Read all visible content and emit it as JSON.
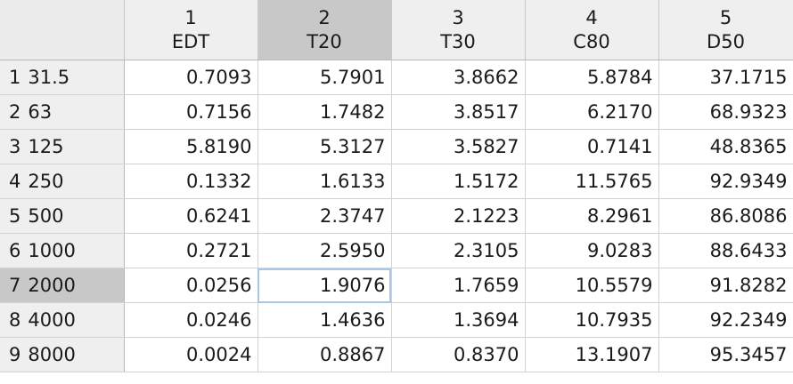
{
  "columns": [
    {
      "index": "1",
      "name": "EDT"
    },
    {
      "index": "2",
      "name": "T20"
    },
    {
      "index": "3",
      "name": "T30"
    },
    {
      "index": "4",
      "name": "C80"
    },
    {
      "index": "5",
      "name": "D50"
    }
  ],
  "rows": [
    {
      "num": "1",
      "label": "31.5",
      "values": [
        "0.7093",
        "5.7901",
        "3.8662",
        "5.8784",
        "37.1715"
      ]
    },
    {
      "num": "2",
      "label": "63",
      "values": [
        "0.7156",
        "1.7482",
        "3.8517",
        "6.2170",
        "68.9323"
      ]
    },
    {
      "num": "3",
      "label": "125",
      "values": [
        "5.8190",
        "5.3127",
        "3.5827",
        "0.7141",
        "48.8365"
      ]
    },
    {
      "num": "4",
      "label": "250",
      "values": [
        "0.1332",
        "1.6133",
        "1.5172",
        "11.5765",
        "92.9349"
      ]
    },
    {
      "num": "5",
      "label": "500",
      "values": [
        "0.6241",
        "2.3747",
        "2.1223",
        "8.2961",
        "86.8086"
      ]
    },
    {
      "num": "6",
      "label": "1000",
      "values": [
        "0.2721",
        "2.5950",
        "2.3105",
        "9.0283",
        "88.6433"
      ]
    },
    {
      "num": "7",
      "label": "2000",
      "values": [
        "0.0256",
        "1.9076",
        "1.7659",
        "10.5579",
        "91.8282"
      ]
    },
    {
      "num": "8",
      "label": "4000",
      "values": [
        "0.0246",
        "1.4636",
        "1.3694",
        "10.7935",
        "92.2349"
      ]
    },
    {
      "num": "9",
      "label": "8000",
      "values": [
        "0.0024",
        "0.8867",
        "0.8370",
        "13.1907",
        "95.3457"
      ]
    }
  ],
  "selection": {
    "column": 2,
    "row": 7
  },
  "colors": {
    "header_bg": "#efefef",
    "selected_header_bg": "#c8c8c8",
    "focus_outline": "#a9c6e6"
  }
}
